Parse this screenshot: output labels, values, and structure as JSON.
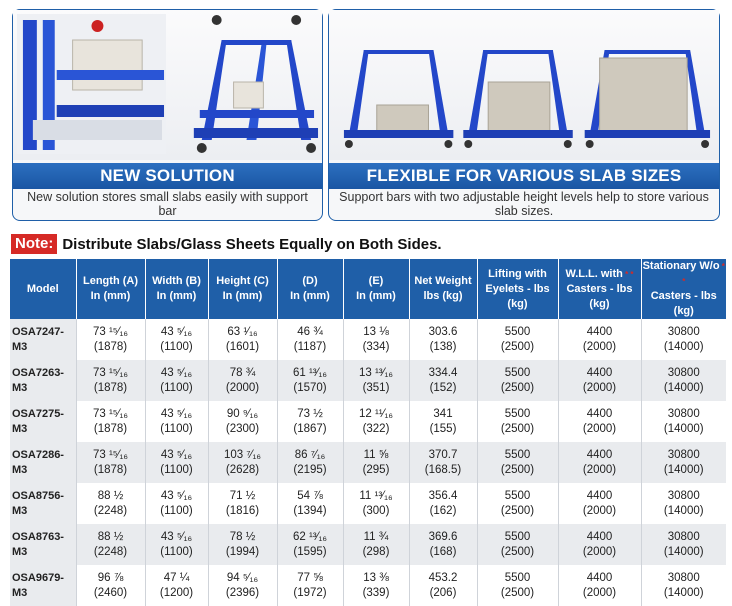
{
  "panels": [
    {
      "title": "NEW SOLUTION",
      "description": "New solution stores small slabs easily with support bar"
    },
    {
      "title": "FLEXIBLE FOR VARIOUS SLAB SIZES",
      "description": "Support bars with two adjustable height levels help to store various slab sizes."
    }
  ],
  "note": {
    "label": "Note:",
    "text": "Distribute Slabs/Glass Sheets Equally on Both Sides."
  },
  "table": {
    "headers": [
      [
        "Model"
      ],
      [
        "Length (A)",
        "In (mm)"
      ],
      [
        "Width (B)",
        "In (mm)"
      ],
      [
        "Height (C)",
        "In (mm)"
      ],
      [
        "(D)",
        "In (mm)"
      ],
      [
        "(E)",
        "In (mm)"
      ],
      [
        "Net Weight",
        "lbs (kg)"
      ],
      [
        "Lifting with",
        "Eyelets - lbs (kg)"
      ],
      [
        "W.L.L. with",
        "Casters - lbs (kg)"
      ],
      [
        "Stationary W/o",
        "Casters - lbs (kg)"
      ]
    ],
    "header_marks": [
      "",
      "",
      "",
      "",
      "",
      "",
      "",
      "",
      "* *",
      "* *"
    ],
    "rows": [
      {
        "model": "OSA7247-M3",
        "cells": [
          [
            "73 ¹⁵⁄₁₆",
            "(1878)"
          ],
          [
            "43 ⁵⁄₁₆",
            "(1100)"
          ],
          [
            "63 ¹⁄₁₆",
            "(1601)"
          ],
          [
            "46 ¾",
            "(1187)"
          ],
          [
            "13 ⅛",
            "(334)"
          ],
          [
            "303.6",
            "(138)"
          ],
          [
            "5500",
            "(2500)"
          ],
          [
            "4400",
            "(2000)"
          ],
          [
            "30800",
            "(14000)"
          ]
        ]
      },
      {
        "model": "OSA7263-M3",
        "cells": [
          [
            "73 ¹⁵⁄₁₆",
            "(1878)"
          ],
          [
            "43 ⁵⁄₁₆",
            "(1100)"
          ],
          [
            "78 ¾",
            "(2000)"
          ],
          [
            "61 ¹³⁄₁₆",
            "(1570)"
          ],
          [
            "13 ¹³⁄₁₆",
            "(351)"
          ],
          [
            "334.4",
            "(152)"
          ],
          [
            "5500",
            "(2500)"
          ],
          [
            "4400",
            "(2000)"
          ],
          [
            "30800",
            "(14000)"
          ]
        ]
      },
      {
        "model": "OSA7275-M3",
        "cells": [
          [
            "73 ¹⁵⁄₁₆",
            "(1878)"
          ],
          [
            "43 ⁵⁄₁₆",
            "(1100)"
          ],
          [
            "90 ⁹⁄₁₆",
            "(2300)"
          ],
          [
            "73 ½",
            "(1867)"
          ],
          [
            "12 ¹¹⁄₁₆",
            "(322)"
          ],
          [
            "341",
            "(155)"
          ],
          [
            "5500",
            "(2500)"
          ],
          [
            "4400",
            "(2000)"
          ],
          [
            "30800",
            "(14000)"
          ]
        ]
      },
      {
        "model": "OSA7286-M3",
        "cells": [
          [
            "73 ¹⁵⁄₁₆",
            "(1878)"
          ],
          [
            "43 ⁵⁄₁₆",
            "(1100)"
          ],
          [
            "103 ⁷⁄₁₆",
            "(2628)"
          ],
          [
            "86 ⁷⁄₁₆",
            "(2195)"
          ],
          [
            "11 ⅝",
            "(295)"
          ],
          [
            "370.7",
            "(168.5)"
          ],
          [
            "5500",
            "(2500)"
          ],
          [
            "4400",
            "(2000)"
          ],
          [
            "30800",
            "(14000)"
          ]
        ]
      },
      {
        "model": "OSA8756-M3",
        "cells": [
          [
            "88 ½",
            "(2248)"
          ],
          [
            "43 ⁵⁄₁₆",
            "(1100)"
          ],
          [
            "71 ½",
            "(1816)"
          ],
          [
            "54 ⅞",
            "(1394)"
          ],
          [
            "11 ¹³⁄₁₆",
            "(300)"
          ],
          [
            "356.4",
            "(162)"
          ],
          [
            "5500",
            "(2500)"
          ],
          [
            "4400",
            "(2000)"
          ],
          [
            "30800",
            "(14000)"
          ]
        ]
      },
      {
        "model": "OSA8763-M3",
        "cells": [
          [
            "88 ½",
            "(2248)"
          ],
          [
            "43 ⁵⁄₁₆",
            "(1100)"
          ],
          [
            "78 ½",
            "(1994)"
          ],
          [
            "62 ¹³⁄₁₆",
            "(1595)"
          ],
          [
            "11 ¾",
            "(298)"
          ],
          [
            "369.6",
            "(168)"
          ],
          [
            "5500",
            "(2500)"
          ],
          [
            "4400",
            "(2000)"
          ],
          [
            "30800",
            "(14000)"
          ]
        ]
      },
      {
        "model": "OSA9679-M3",
        "cells": [
          [
            "96 ⅞",
            "(2460)"
          ],
          [
            "47 ¼",
            "(1200)"
          ],
          [
            "94 ⁵⁄₁₆",
            "(2396)"
          ],
          [
            "77 ⅝",
            "(1972)"
          ],
          [
            "13 ⅜",
            "(339)"
          ],
          [
            "453.2",
            "(206)"
          ],
          [
            "5500",
            "(2500)"
          ],
          [
            "4400",
            "(2000)"
          ],
          [
            "30800",
            "(14000)"
          ]
        ]
      }
    ]
  },
  "colors": {
    "brand_blue": "#1f5fa8",
    "note_red": "#d62a26",
    "frame_blue": "#2347c9",
    "row_shade": "#e9ebee"
  }
}
